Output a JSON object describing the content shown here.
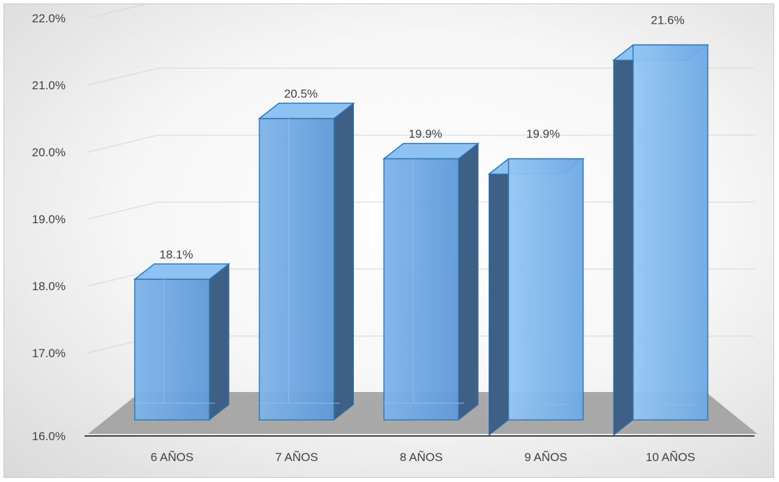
{
  "chart_data": {
    "type": "bar",
    "categories": [
      "6 AÑOS",
      "7 AÑOS",
      "8 AÑOS",
      "9 AÑOS",
      "10 AÑOS"
    ],
    "values": [
      18.1,
      20.5,
      19.9,
      19.9,
      21.6
    ],
    "data_labels": [
      "18.1%",
      "20.5%",
      "19.9%",
      "19.9%",
      "21.6%"
    ],
    "title": "",
    "xlabel": "",
    "ylabel": "",
    "ylim": [
      16.0,
      22.0
    ],
    "yticks": [
      16.0,
      17.0,
      18.0,
      19.0,
      20.0,
      21.0,
      22.0
    ],
    "ytick_labels": [
      "16.0%",
      "17.0%",
      "18.0%",
      "19.0%",
      "20.0%",
      "21.0%",
      "22.0%"
    ],
    "grid": true,
    "legend": "none",
    "style": "3d-column",
    "colors": {
      "bar_front": "#6fa8e6",
      "bar_top": "#8ec2f2",
      "bar_side": "#3e5f86",
      "bar_edge": "#2e75b6",
      "floor": "#9b9b9b",
      "gridline": "#d9d9d9",
      "axis": "#404040"
    }
  }
}
